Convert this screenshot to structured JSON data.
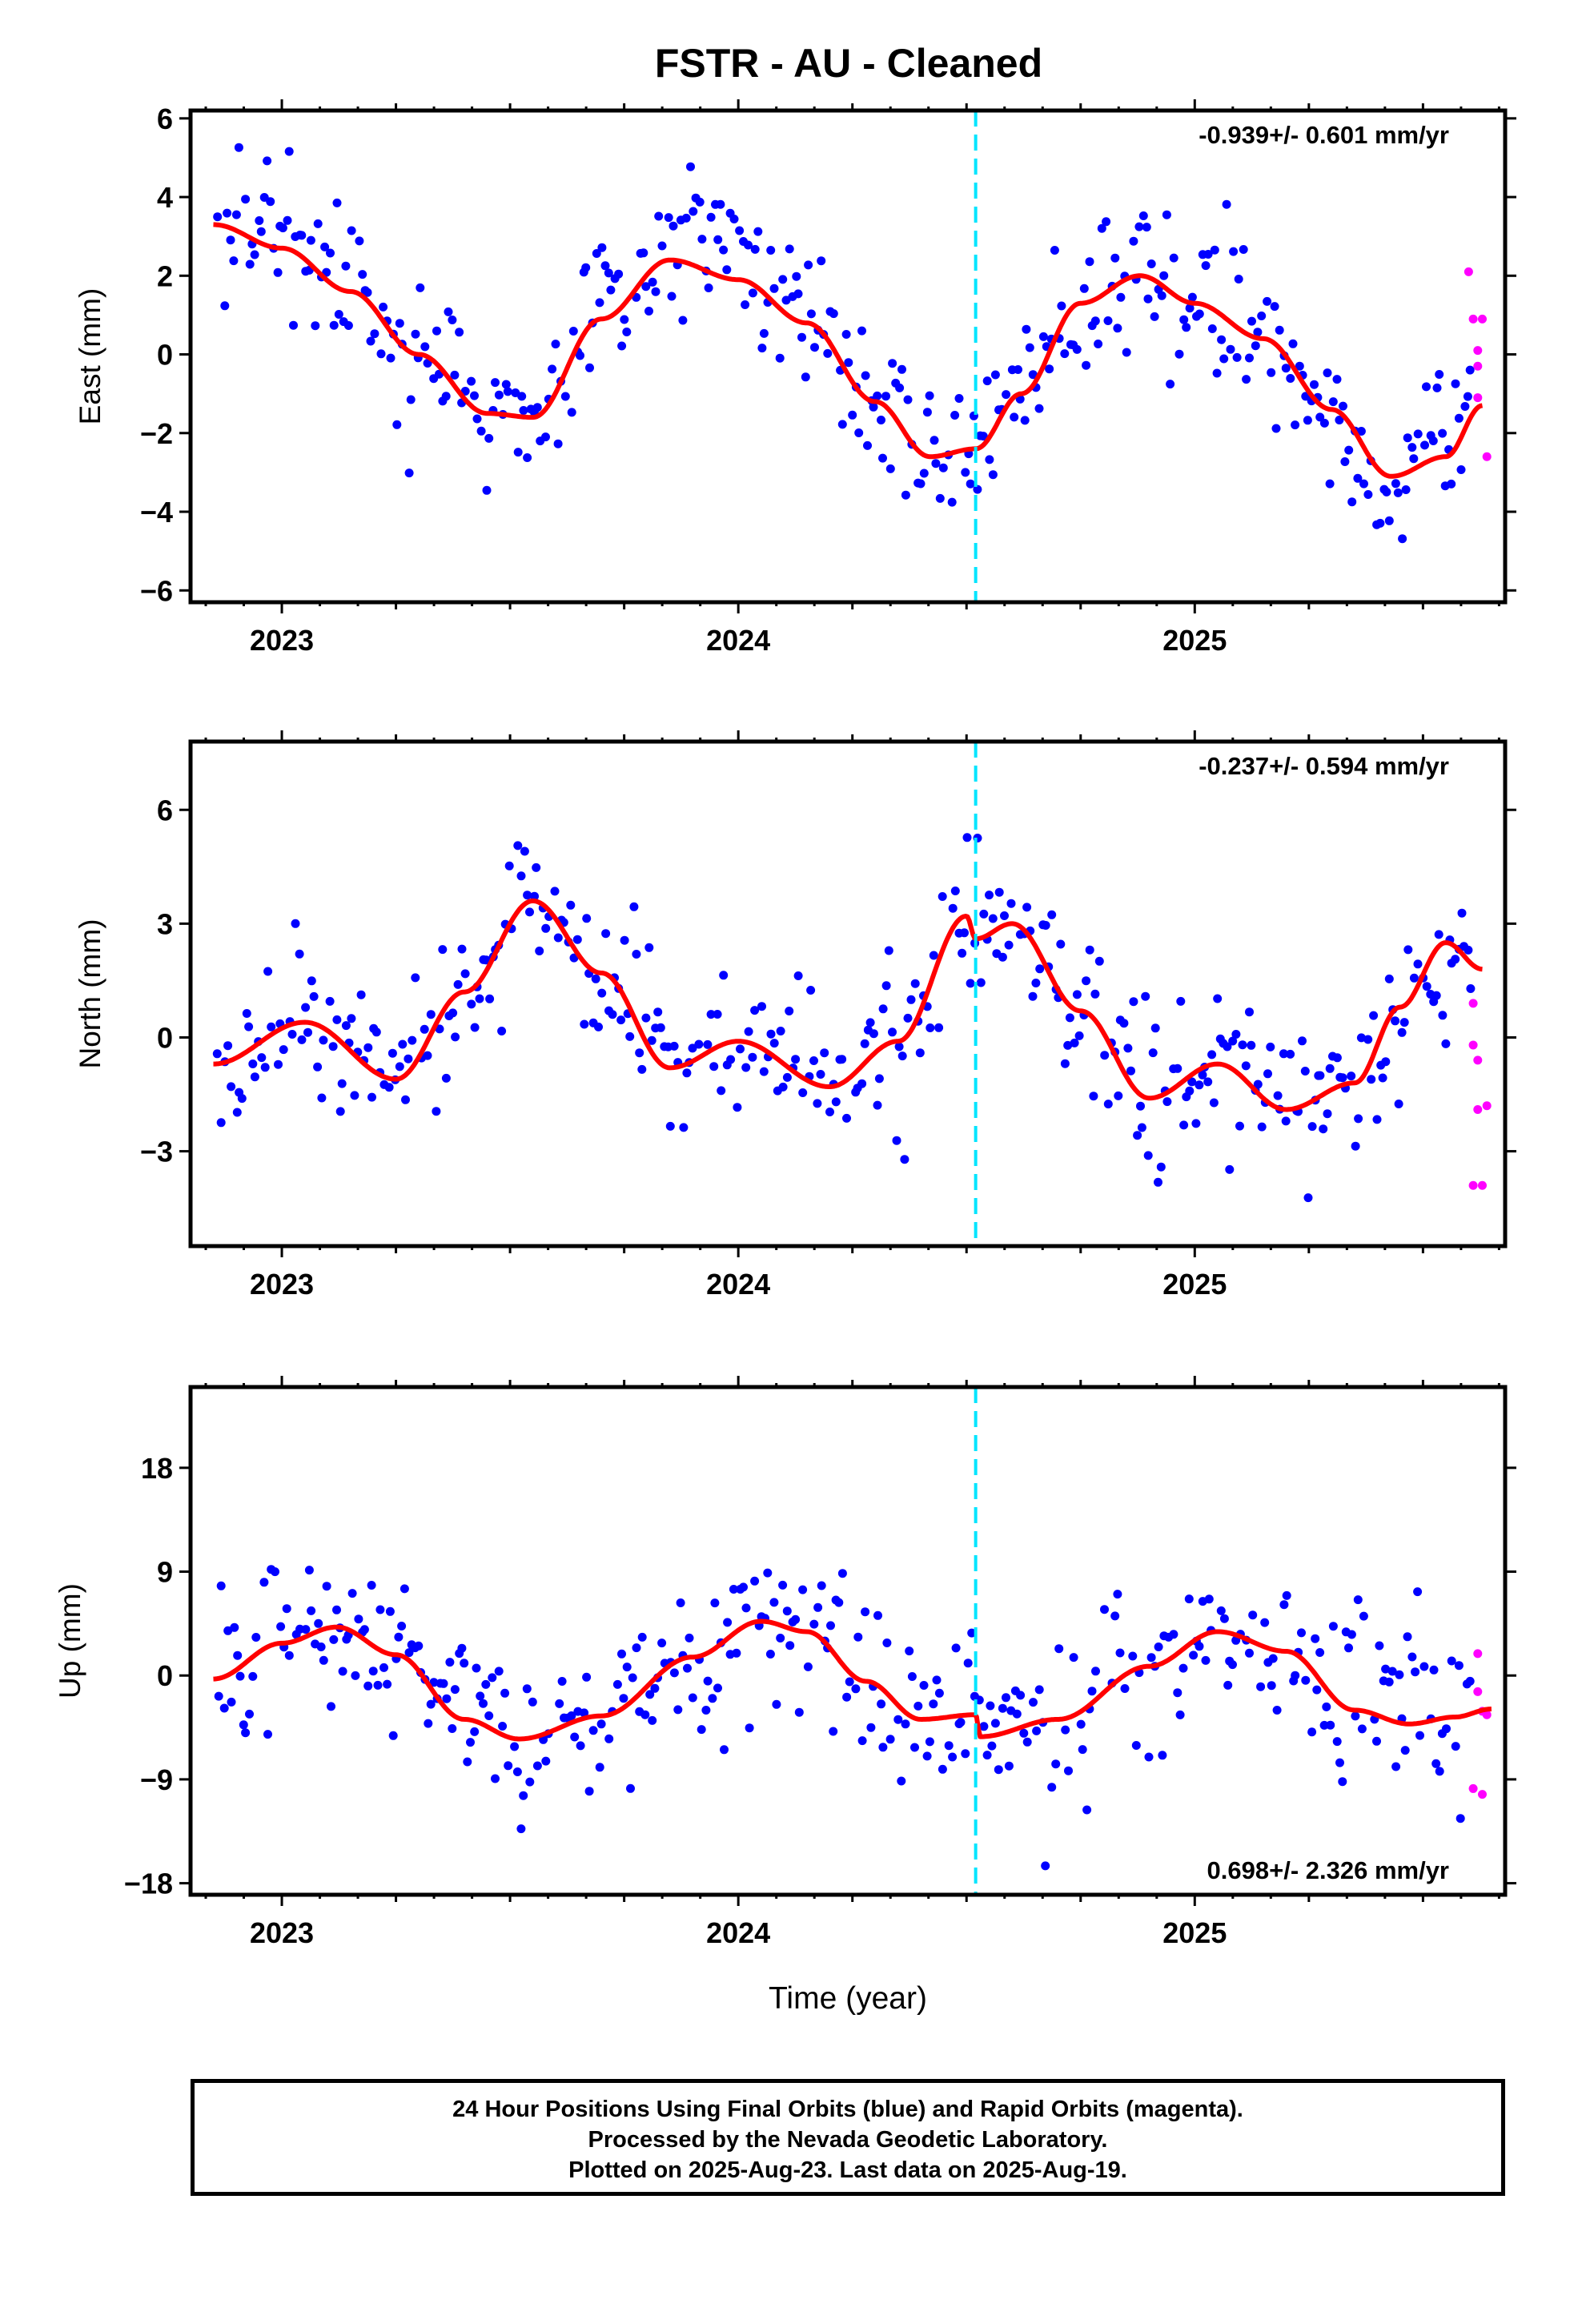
{
  "colors": {
    "final_orbits": "#0000ff",
    "rapid_orbits": "#ff00ff",
    "model_fit": "#ff0000",
    "equipment_change": "#00e5ff",
    "frame": "#000000"
  },
  "chart_data": {
    "type": "scatter",
    "title": "FSTR  - AU - Cleaned",
    "xlabel": "Time (year)",
    "xlim": [
      2022.8,
      2025.68
    ],
    "x_ticks": [
      "2023",
      "2024",
      "2025"
    ],
    "grid": false,
    "equipment_change_epoch": 2024.52,
    "panels": [
      {
        "ylabel": "East (mm)",
        "ylim": [
          -6.3,
          6.2
        ],
        "y_ticks": [
          "6",
          "4",
          "2",
          "0",
          "−2",
          "−4",
          "−6"
        ],
        "rate_text": "-0.939+/- 0.601 mm/yr",
        "rate_position": "top-right",
        "noise_sd": 1.05,
        "fit": {
          "x": [
            2022.85,
            2023.0,
            2023.15,
            2023.3,
            2023.45,
            2023.55,
            2023.7,
            2023.85,
            2024.0,
            2024.15,
            2024.3,
            2024.42,
            2024.52,
            2024.62,
            2024.75,
            2024.88,
            2025.0,
            2025.15,
            2025.3,
            2025.43,
            2025.55,
            2025.63
          ],
          "y": [
            3.3,
            2.7,
            1.6,
            0.0,
            -1.5,
            -1.6,
            0.9,
            2.4,
            1.9,
            0.8,
            -1.2,
            -2.6,
            -2.4,
            -1.0,
            1.3,
            2.0,
            1.3,
            0.4,
            -1.4,
            -3.1,
            -2.6,
            -1.3
          ]
        },
        "rapid_points": [
          [
            2025.6,
            2.1
          ],
          [
            2025.61,
            0.9
          ],
          [
            2025.62,
            0.1
          ],
          [
            2025.62,
            -0.3
          ],
          [
            2025.63,
            0.9
          ],
          [
            2025.62,
            -1.1
          ],
          [
            2025.64,
            -2.6
          ]
        ]
      },
      {
        "ylabel": "North (mm)",
        "ylim": [
          -5.5,
          7.8
        ],
        "y_ticks": [
          "6",
          "3",
          "0",
          "−3"
        ],
        "rate_text": "-0.237+/- 0.594 mm/yr",
        "rate_position": "top-right",
        "noise_sd": 1.0,
        "fit": {
          "x": [
            2022.85,
            2023.05,
            2023.25,
            2023.4,
            2023.55,
            2023.7,
            2023.85,
            2024.0,
            2024.2,
            2024.35,
            2024.5,
            2024.52,
            2024.6,
            2024.75,
            2024.9,
            2025.05,
            2025.2,
            2025.35,
            2025.45,
            2025.55,
            2025.63
          ],
          "y": [
            -0.7,
            0.4,
            -1.1,
            1.2,
            3.6,
            1.7,
            -0.8,
            -0.1,
            -1.3,
            -0.1,
            3.2,
            2.6,
            3.0,
            0.7,
            -1.6,
            -0.7,
            -1.9,
            -1.2,
            0.8,
            2.5,
            1.8
          ]
        },
        "rapid_points": [
          [
            2025.61,
            0.9
          ],
          [
            2025.61,
            -0.2
          ],
          [
            2025.62,
            -0.6
          ],
          [
            2025.62,
            -1.9
          ],
          [
            2025.64,
            -1.8
          ],
          [
            2025.61,
            -3.9
          ],
          [
            2025.63,
            -3.9
          ]
        ]
      },
      {
        "ylabel": "Up (mm)",
        "ylim": [
          -19,
          25
        ],
        "y_ticks": [
          "18",
          "9",
          "0",
          "−9",
          "−18"
        ],
        "rate_text": "0.698+/- 2.326 mm/yr",
        "rate_position": "bottom-right",
        "noise_sd": 3.8,
        "fit": {
          "x": [
            2022.85,
            2023.0,
            2023.12,
            2023.25,
            2023.4,
            2023.52,
            2023.7,
            2023.9,
            2024.05,
            2024.15,
            2024.28,
            2024.4,
            2024.52,
            2024.53,
            2024.7,
            2024.9,
            2025.05,
            2025.2,
            2025.35,
            2025.47,
            2025.57,
            2025.65
          ],
          "y": [
            -0.3,
            2.8,
            4.2,
            1.8,
            -3.8,
            -5.5,
            -3.5,
            1.6,
            4.7,
            3.8,
            -0.5,
            -3.8,
            -3.4,
            -5.3,
            -3.8,
            0.8,
            3.8,
            2.1,
            -3.0,
            -4.2,
            -3.6,
            -2.9
          ]
        },
        "rapid_points": [
          [
            2025.62,
            1.9
          ],
          [
            2025.62,
            -1.4
          ],
          [
            2025.63,
            -3.1
          ],
          [
            2025.61,
            -9.8
          ],
          [
            2025.63,
            -10.3
          ],
          [
            2025.64,
            -3.4
          ]
        ]
      }
    ]
  },
  "footer": {
    "line1": "24 Hour Positions Using Final Orbits (blue) and Rapid Orbits (magenta).",
    "line2": "Processed by the Nevada Geodetic Laboratory.",
    "line3": "Plotted on 2025-Aug-23. Last data on 2025-Aug-19."
  }
}
